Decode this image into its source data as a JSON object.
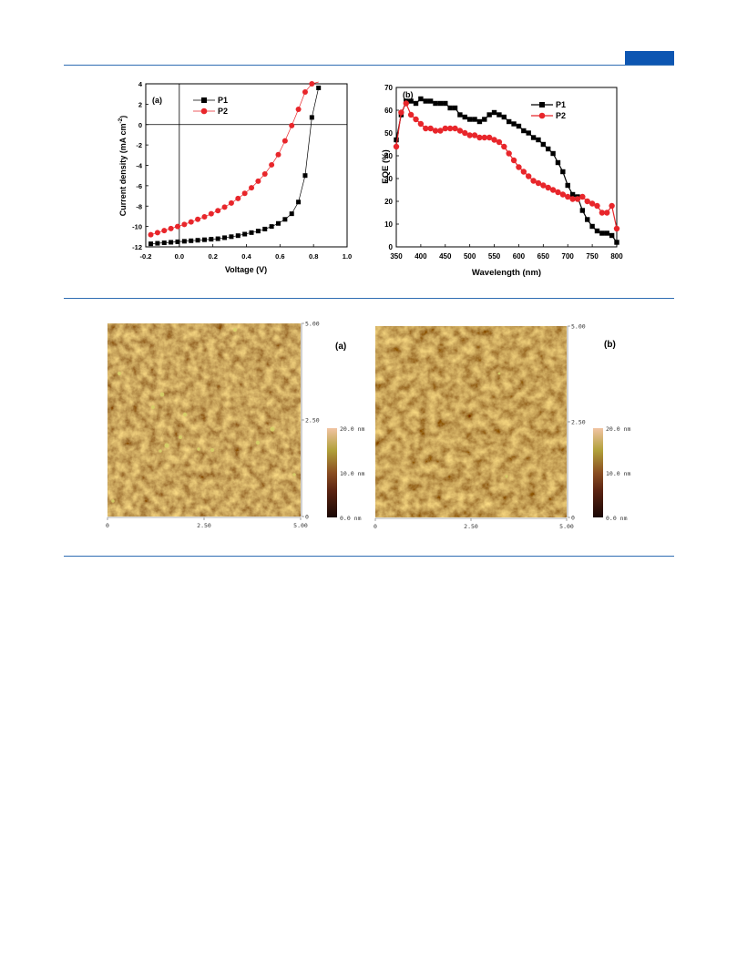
{
  "page": {
    "accent_color": "#0d56b2",
    "rule_color": "#2f6db3"
  },
  "chart_data": [
    {
      "type": "line",
      "panel_label": "(a)",
      "xlabel": "Voltage (V)",
      "ylabel": "Current density (mA cm⁻²)",
      "ylabel_main": "Current density (mA cm",
      "ylabel_sup": "-2",
      "ylabel_close": ")",
      "xlim": [
        -0.2,
        1.0
      ],
      "ylim": [
        -12,
        4
      ],
      "xticks": [
        -0.2,
        0.0,
        0.2,
        0.4,
        0.6,
        0.8,
        1.0
      ],
      "xtick_labels": [
        "-0.2",
        "0.0",
        "0.2",
        "0.4",
        "0.6",
        "0.8",
        "1.0"
      ],
      "yticks": [
        -12,
        -10,
        -8,
        -6,
        -4,
        -2,
        0,
        2,
        4
      ],
      "ytick_labels": [
        "-12",
        "-10",
        "-8",
        "-6",
        "-4",
        "-2",
        "0",
        "2",
        "4"
      ],
      "reference_lines": {
        "x": 0,
        "y": 0
      },
      "legend_position": "top-left",
      "series": [
        {
          "name": "P1",
          "color": "#000000",
          "marker": "square",
          "x": [
            -0.17,
            -0.13,
            -0.09,
            -0.05,
            -0.01,
            0.03,
            0.07,
            0.11,
            0.15,
            0.19,
            0.23,
            0.27,
            0.31,
            0.35,
            0.39,
            0.43,
            0.47,
            0.51,
            0.55,
            0.59,
            0.63,
            0.67,
            0.71,
            0.75,
            0.79,
            0.83
          ],
          "y": [
            -11.7,
            -11.65,
            -11.6,
            -11.55,
            -11.5,
            -11.45,
            -11.4,
            -11.35,
            -11.3,
            -11.25,
            -11.2,
            -11.1,
            -11.0,
            -10.9,
            -10.75,
            -10.6,
            -10.45,
            -10.25,
            -10.0,
            -9.7,
            -9.3,
            -8.75,
            -7.6,
            -5.0,
            0.7,
            3.6
          ]
        },
        {
          "name": "P2",
          "color": "#e8262b",
          "marker": "circle",
          "x": [
            -0.17,
            -0.13,
            -0.09,
            -0.05,
            -0.01,
            0.03,
            0.07,
            0.11,
            0.15,
            0.19,
            0.23,
            0.27,
            0.31,
            0.35,
            0.39,
            0.43,
            0.47,
            0.51,
            0.55,
            0.59,
            0.63,
            0.67,
            0.71,
            0.75,
            0.79,
            0.83
          ],
          "y": [
            -10.8,
            -10.6,
            -10.4,
            -10.2,
            -10.0,
            -9.8,
            -9.55,
            -9.3,
            -9.05,
            -8.75,
            -8.45,
            -8.1,
            -7.7,
            -7.25,
            -6.75,
            -6.2,
            -5.55,
            -4.85,
            -3.95,
            -2.95,
            -1.6,
            -0.1,
            1.5,
            3.2,
            4.0,
            4.3
          ]
        }
      ]
    },
    {
      "type": "line",
      "panel_label": "(b)",
      "xlabel": "Wavelength (nm)",
      "ylabel": "EQE (%)",
      "xlim": [
        350,
        800
      ],
      "ylim": [
        0,
        70
      ],
      "xticks": [
        350,
        400,
        450,
        500,
        550,
        600,
        650,
        700,
        750,
        800
      ],
      "xtick_labels": [
        "350",
        "400",
        "450",
        "500",
        "550",
        "600",
        "650",
        "700",
        "750",
        "800"
      ],
      "yticks": [
        0,
        10,
        20,
        30,
        40,
        50,
        60,
        70
      ],
      "ytick_labels": [
        "0",
        "10",
        "20",
        "30",
        "40",
        "50",
        "60",
        "70"
      ],
      "legend_position": "top-right",
      "series": [
        {
          "name": "P1",
          "color": "#000000",
          "marker": "square",
          "x": [
            350,
            360,
            370,
            380,
            390,
            400,
            410,
            420,
            430,
            440,
            450,
            460,
            470,
            480,
            490,
            500,
            510,
            520,
            530,
            540,
            550,
            560,
            570,
            580,
            590,
            600,
            610,
            620,
            630,
            640,
            650,
            660,
            670,
            680,
            690,
            700,
            710,
            720,
            730,
            740,
            750,
            760,
            770,
            780,
            790,
            800
          ],
          "y": [
            47,
            58,
            64,
            64,
            63,
            65,
            64,
            64,
            63,
            63,
            63,
            61,
            61,
            58,
            57,
            56,
            56,
            55,
            56,
            58,
            59,
            58,
            57,
            55,
            54,
            53,
            51,
            50,
            48,
            47,
            45,
            43,
            41,
            37,
            33,
            27,
            23,
            22,
            16,
            12,
            9,
            7,
            6,
            6,
            5,
            2
          ]
        },
        {
          "name": "P2",
          "color": "#e8262b",
          "marker": "circle",
          "x": [
            350,
            360,
            370,
            380,
            390,
            400,
            410,
            420,
            430,
            440,
            450,
            460,
            470,
            480,
            490,
            500,
            510,
            520,
            530,
            540,
            550,
            560,
            570,
            580,
            590,
            600,
            610,
            620,
            630,
            640,
            650,
            660,
            670,
            680,
            690,
            700,
            710,
            720,
            730,
            740,
            750,
            760,
            770,
            780,
            790,
            800
          ],
          "y": [
            44,
            59,
            63,
            58,
            56,
            54,
            52,
            52,
            51,
            51,
            52,
            52,
            52,
            51,
            50,
            49,
            49,
            48,
            48,
            48,
            47,
            46,
            44,
            41,
            38,
            35,
            33,
            31,
            29,
            28,
            27,
            26,
            25,
            24,
            23,
            22,
            21,
            21,
            22,
            20,
            19,
            18,
            15,
            15,
            18,
            8
          ]
        }
      ]
    }
  ],
  "afm": [
    {
      "panel_label": "(a)",
      "x_ticks": [
        "0",
        "2.50",
        "5.00"
      ],
      "y_ticks": [
        "0",
        "2.50",
        "5.00"
      ],
      "scale_labels": [
        "20.0 nm",
        "10.0 nm",
        "0.0 nm"
      ]
    },
    {
      "panel_label": "(b)",
      "x_ticks": [
        "0",
        "2.50",
        "5.00"
      ],
      "y_ticks": [
        "0",
        "2.50",
        "5.00"
      ],
      "scale_labels": [
        "20.0 nm",
        "10.0 nm",
        "0.0 nm"
      ]
    }
  ]
}
